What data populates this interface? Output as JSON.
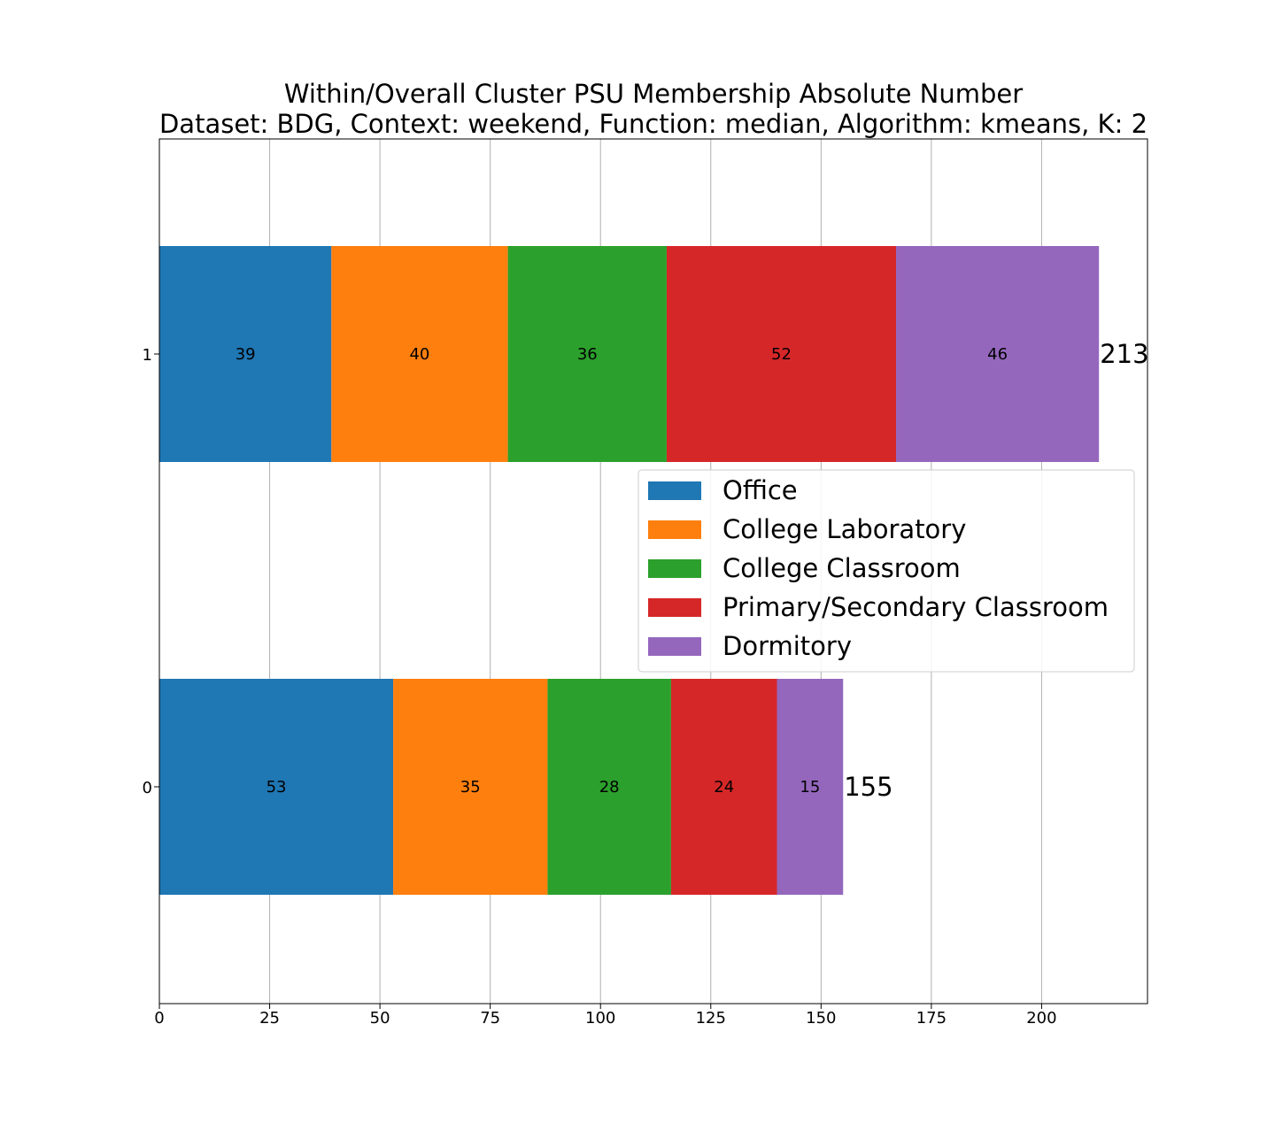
{
  "chart_data": {
    "type": "bar",
    "orientation": "horizontal",
    "stacked": true,
    "title": "Within/Overall Cluster PSU Membership Absolute Number",
    "subtitle": "Dataset: BDG, Context: weekend, Function: median, Algorithm: kmeans, K: 2",
    "xlabel": "",
    "ylabel": "",
    "categories": [
      "0",
      "1"
    ],
    "xlim": [
      0,
      224
    ],
    "xticks": [
      0,
      25,
      50,
      75,
      100,
      125,
      150,
      175,
      200
    ],
    "grid": "vertical",
    "legend_position": "center-right",
    "series": [
      {
        "name": "Office",
        "color": "#1f77b4",
        "values": [
          53,
          39
        ]
      },
      {
        "name": "College Laboratory",
        "color": "#ff7f0e",
        "values": [
          35,
          40
        ]
      },
      {
        "name": "College Classroom",
        "color": "#2ca02c",
        "values": [
          28,
          36
        ]
      },
      {
        "name": "Primary/Secondary Classroom",
        "color": "#d62728",
        "values": [
          24,
          52
        ]
      },
      {
        "name": "Dormitory",
        "color": "#9467bd",
        "values": [
          15,
          46
        ]
      }
    ],
    "totals": [
      155,
      213
    ]
  }
}
